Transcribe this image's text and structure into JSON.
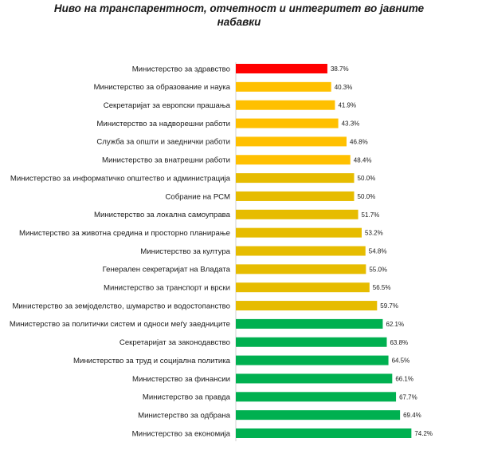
{
  "chart_data": {
    "type": "bar",
    "orientation": "horizontal",
    "title_line1": "Ниво на транспарентност, отчетност и интегритет во јавните",
    "title_line2": "набавки",
    "categories": [
      "Министерство за здравство",
      "Министерство за образование и наука",
      "Секретаријат за европски прашања",
      "Министерство за надворешни работи",
      "Служба за општи и заеднички работи",
      "Министерство за внатрешни работи",
      "Министерство за информатичко општество и администрација",
      "Собрание на РСМ",
      "Министерство за локална самоуправа",
      "Министерство за животна средина и просторно планирање",
      "Министерство за култура",
      "Генерален секретаријат на Владата",
      "Министерство за транспорт и врски",
      "Министерство за земјоделство, шумарство и водостопанство",
      "Министерство за политички систем и односи меѓу заедниците",
      "Секретаријат за законодавство",
      "Министерство за труд и социјална политика",
      "Министерство за финансии",
      "Министерство за правда",
      "Министерство за одбрана",
      "Министерство за економија"
    ],
    "values": [
      38.7,
      40.3,
      41.9,
      43.3,
      46.8,
      48.4,
      50.0,
      50.0,
      51.7,
      53.2,
      54.8,
      55.0,
      56.5,
      59.7,
      62.1,
      63.8,
      64.5,
      66.1,
      67.7,
      69.4,
      74.2
    ],
    "value_labels": [
      "38.7%",
      "40.3%",
      "41.9%",
      "43.3%",
      "46.8%",
      "48.4%",
      "50.0%",
      "50.0%",
      "51.7%",
      "53.2%",
      "54.8%",
      "55.0%",
      "56.5%",
      "59.7%",
      "62.1%",
      "63.8%",
      "64.5%",
      "66.1%",
      "67.7%",
      "69.4%",
      "74.2%"
    ],
    "colors": [
      "#ff0000",
      "#ffc000",
      "#ffc000",
      "#ffc000",
      "#ffc000",
      "#ffc000",
      "#e6bc00",
      "#e6bc00",
      "#e6bc00",
      "#e6bc00",
      "#e6bc00",
      "#e6bc00",
      "#e6bc00",
      "#e6bc00",
      "#00b050",
      "#00b050",
      "#00b050",
      "#00b050",
      "#00b050",
      "#00b050",
      "#00b050"
    ],
    "xlim": [
      0,
      100
    ],
    "grid": false,
    "legend": "none"
  }
}
